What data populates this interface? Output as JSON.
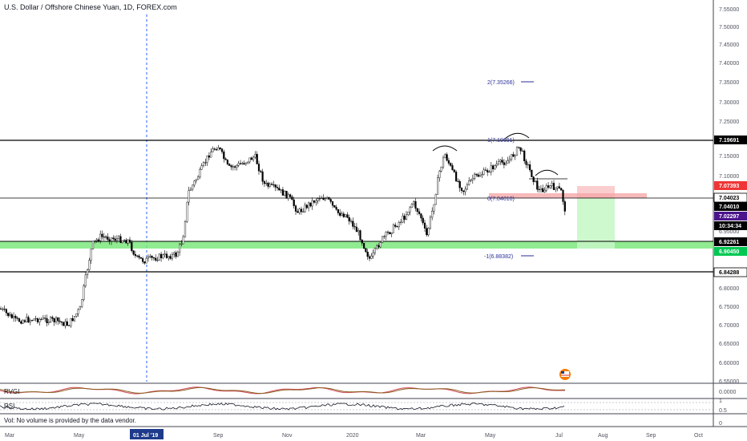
{
  "header": {
    "title": "U.S. Dollar / Offshore Chinese Yuan, 1D, FOREX.com"
  },
  "indicators": {
    "rvgi": "RVGI",
    "rsi": "RSI",
    "rvgi_value": "0.0000",
    "volume_note": "Vol: No volume is provided by the data vendor."
  },
  "price_axis": {
    "ticks": [
      "7.55000",
      "7.50000",
      "7.45000",
      "7.40000",
      "7.35000",
      "7.30000",
      "7.25000",
      "7.20000",
      "7.15000",
      "7.10000",
      "7.05000",
      "7.00000",
      "6.95000",
      "6.90000",
      "6.85000",
      "6.80000",
      "6.75000",
      "6.70000",
      "6.65000",
      "6.60000",
      "6.55000"
    ]
  },
  "rsi_axis": {
    "ticks": [
      "1",
      "0.5",
      "0"
    ]
  },
  "time_axis": {
    "labels": [
      "Mar",
      "May",
      "Sep",
      "Nov",
      "2020",
      "Mar",
      "May",
      "Jul",
      "Aug",
      "Sep",
      "Oct"
    ],
    "highlight": "01 Jul '19"
  },
  "levels": [
    {
      "label": "7.19691",
      "style": "black"
    },
    {
      "label": "7.07393",
      "style": "red"
    },
    {
      "label": "7.04023",
      "style": "white"
    },
    {
      "label": "7.04010",
      "style": "black"
    },
    {
      "label": "7.02297",
      "style": "purple"
    },
    {
      "label": "10:34:34",
      "style": "black"
    },
    {
      "label": "6.92261",
      "style": "black"
    },
    {
      "label": "6.90450",
      "style": "green"
    },
    {
      "label": "6.84288",
      "style": "white"
    }
  ],
  "fib": [
    {
      "label": "2(7.35266)"
    },
    {
      "label": "1(7.19691)"
    },
    {
      "label": "0(7.04010)"
    },
    {
      "label": "-1(6.88382)"
    }
  ],
  "colors": {
    "candle": "#000000",
    "support_zone": "#7ee87e",
    "stop_zone": "#f4a3a3",
    "target_zone": "#b9f5b9",
    "rvgi_main": "#d1495b",
    "rvgi_signal": "#8b5e1e",
    "fib_line": "#2a2e99",
    "highlight_bg": "#1e3a8a"
  }
}
